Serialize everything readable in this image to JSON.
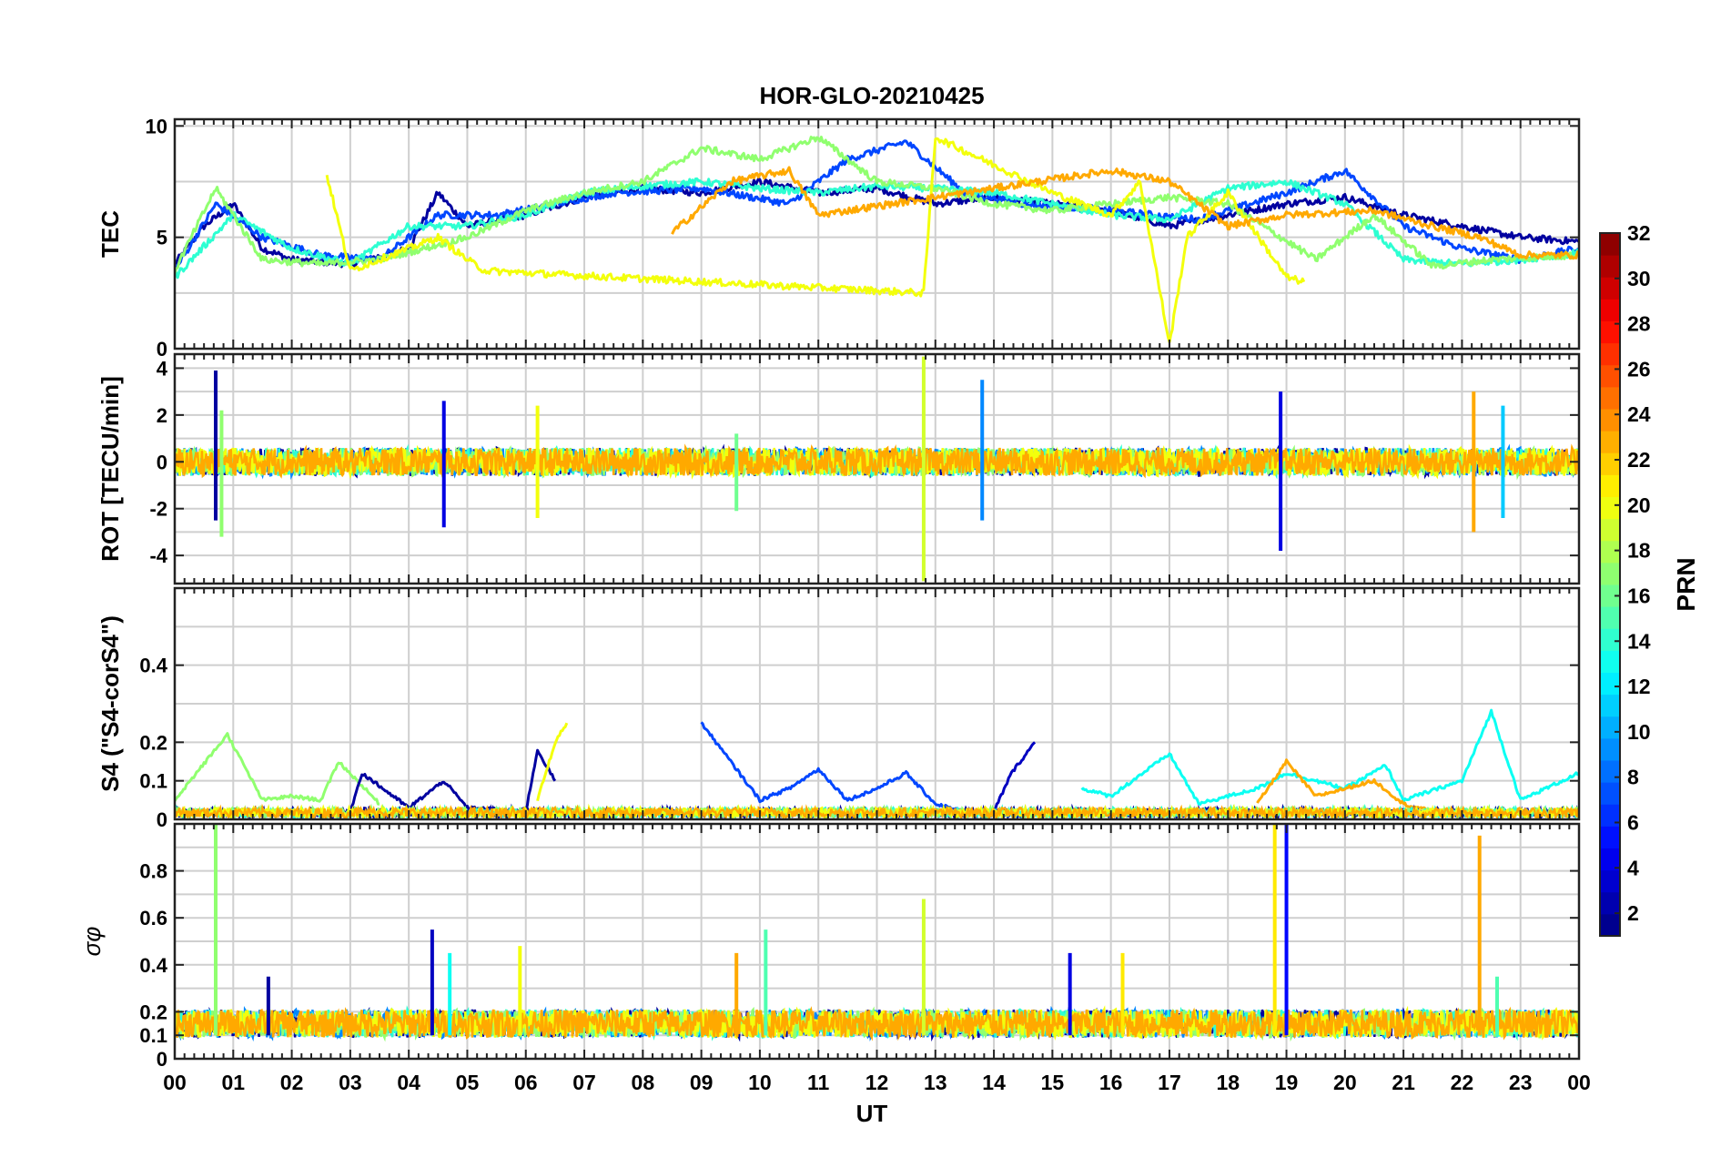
{
  "chart_data": {
    "type": "line",
    "title": "HOR-GLO-20210425",
    "xlabel": "UT",
    "x_tick_labels": [
      "00",
      "01",
      "02",
      "03",
      "04",
      "05",
      "06",
      "07",
      "08",
      "09",
      "10",
      "11",
      "12",
      "13",
      "14",
      "15",
      "16",
      "17",
      "18",
      "19",
      "20",
      "21",
      "22",
      "23",
      "00"
    ],
    "xlim": [
      0,
      24
    ],
    "panels": [
      {
        "id": "tec",
        "ylabel": "TEC",
        "ylim": [
          0,
          10.3
        ],
        "y_tick_labels": [
          "0",
          "5",
          "10"
        ],
        "y_ticks": [
          0,
          5,
          10
        ],
        "minor_grid": [
          2.5,
          7.5
        ],
        "series_summary": [
          {
            "prn": 2,
            "x": [
              0,
              0.5,
              1,
              1.5,
              2,
              3,
              4,
              4.5,
              5,
              6,
              7,
              8,
              9,
              10,
              11,
              12,
              13,
              14,
              15,
              16,
              17,
              18,
              19,
              20,
              21,
              22,
              23,
              24
            ],
            "y": [
              3.8,
              5.5,
              6.5,
              4.5,
              4,
              3.8,
              4.5,
              7,
              5.5,
              6,
              6.8,
              7.2,
              7,
              7.5,
              7,
              7.2,
              6.5,
              6.8,
              6.5,
              6.2,
              5.5,
              6,
              6.5,
              6.8,
              6,
              5.5,
              5,
              4.8
            ]
          },
          {
            "prn": 7,
            "x": [
              0,
              0.7,
              1.5,
              2.5,
              3.5,
              4.5,
              5.5,
              6.5,
              7.5,
              9,
              10.5,
              11.5,
              12.5,
              13.5,
              14.5,
              16,
              17.5,
              19,
              20,
              21,
              22,
              23,
              24
            ],
            "y": [
              3.5,
              6.5,
              5,
              4.2,
              4,
              6,
              6,
              6.5,
              7,
              7.2,
              6.5,
              8.5,
              9.3,
              7,
              6.5,
              6.2,
              5.8,
              7,
              8,
              5.5,
              4.5,
              4,
              4.5
            ]
          },
          {
            "prn": 14,
            "x": [
              0,
              1,
              2,
              3,
              4,
              5,
              6,
              7,
              8,
              9,
              10,
              11,
              12,
              13,
              14,
              16,
              17,
              18,
              19,
              20,
              21,
              22,
              23,
              24
            ],
            "y": [
              3.2,
              6,
              4.5,
              3.8,
              5.5,
              5.5,
              6,
              7,
              7.3,
              7.5,
              7.2,
              7,
              7.3,
              7.2,
              7,
              6,
              5.8,
              7.2,
              7.5,
              6.5,
              4,
              3.8,
              4,
              4.3
            ]
          },
          {
            "prn": 17,
            "x": [
              0,
              0.7,
              1.5,
              2.5,
              3.5,
              5,
              6,
              7,
              8,
              9,
              10,
              11,
              12,
              13,
              14,
              15,
              16,
              17,
              18,
              19.5,
              20.5,
              21.5,
              22.5,
              24
            ],
            "y": [
              3.5,
              7.2,
              4,
              3.8,
              4,
              5,
              6.2,
              7,
              7.5,
              9,
              8.5,
              9.5,
              7.5,
              7.2,
              6.5,
              6.2,
              6.5,
              6.8,
              6.5,
              4,
              6,
              3.7,
              4,
              4.2
            ]
          },
          {
            "prn": 20,
            "x": [
              2.6,
              3,
              4.5,
              5,
              5.3,
              12.8,
              13,
              15,
              16,
              16.5,
              17,
              17.3,
              18,
              19,
              19.3
            ],
            "y": [
              7.8,
              3.5,
              5,
              4,
              3.5,
              2.5,
              9.5,
              7,
              6,
              7.5,
              0.2,
              5,
              7,
              3.2,
              3
            ]
          },
          {
            "prn": 23,
            "x": [
              8.5,
              9.5,
              10.5,
              11,
              16,
              17,
              18,
              19,
              20.5,
              21.5,
              22.3,
              23,
              24
            ],
            "y": [
              5.2,
              7.5,
              8,
              6,
              8,
              7.5,
              5.5,
              6,
              6.2,
              5.5,
              5,
              4.2,
              4.2
            ]
          }
        ]
      },
      {
        "id": "rot",
        "ylabel": "ROT [TECU/min]",
        "ylim": [
          -5.2,
          4.6
        ],
        "y_tick_labels": [
          "-4",
          "-2",
          "0",
          "2",
          "4"
        ],
        "y_ticks": [
          -4,
          -2,
          0,
          2,
          4
        ],
        "minor_grid": [
          -3,
          -1,
          1,
          3
        ],
        "spikes": [
          {
            "x": 0.7,
            "min": -2.5,
            "max": 3.9,
            "prn": 2
          },
          {
            "x": 0.8,
            "min": -3.2,
            "max": 2.2,
            "prn": 17
          },
          {
            "x": 4.6,
            "min": -2.8,
            "max": 2.6,
            "prn": 4
          },
          {
            "x": 6.2,
            "min": -2.4,
            "max": 2.4,
            "prn": 20
          },
          {
            "x": 9.6,
            "min": -2.1,
            "max": 1.2,
            "prn": 16
          },
          {
            "x": 12.8,
            "min": -5.1,
            "max": 4.5,
            "prn": 19
          },
          {
            "x": 13.8,
            "min": -2.5,
            "max": 3.5,
            "prn": 9
          },
          {
            "x": 18.9,
            "min": -3.8,
            "max": 3.0,
            "prn": 4
          },
          {
            "x": 22.2,
            "min": -3.0,
            "max": 3.0,
            "prn": 23
          },
          {
            "x": 22.7,
            "min": -2.4,
            "max": 2.4,
            "prn": 11
          }
        ]
      },
      {
        "id": "s4",
        "ylabel": "S4 (\"S4-corS4\")",
        "ylim": [
          0,
          0.6
        ],
        "y_tick_labels": [
          "0",
          "0.1",
          "0.2",
          "0.4"
        ],
        "y_ticks": [
          0,
          0.1,
          0.2,
          0.4
        ],
        "minor_grid": [
          0.3,
          0.5
        ],
        "series_summary": [
          {
            "prn": 17,
            "x": [
              0,
              0.9,
              1.5,
              2,
              2.5,
              2.8,
              3.5
            ],
            "y": [
              0.05,
              0.22,
              0.05,
              0.06,
              0.05,
              0.15,
              0.04
            ]
          },
          {
            "prn": 2,
            "x": [
              3,
              3.2,
              4,
              4.6,
              5,
              6,
              6.2,
              6.5
            ],
            "y": [
              0.02,
              0.12,
              0.03,
              0.1,
              0.03,
              0.02,
              0.18,
              0.1
            ]
          },
          {
            "prn": 20,
            "x": [
              6.2,
              6.5,
              6.7
            ],
            "y": [
              0.05,
              0.2,
              0.25
            ]
          },
          {
            "prn": 7,
            "x": [
              9,
              9.5,
              10,
              10.5,
              11,
              11.5,
              12,
              12.5,
              13,
              13.5
            ],
            "y": [
              0.25,
              0.15,
              0.05,
              0.08,
              0.13,
              0.05,
              0.08,
              0.12,
              0.04,
              0.02
            ]
          },
          {
            "prn": 3,
            "x": [
              14,
              14.3,
              14.7
            ],
            "y": [
              0.02,
              0.12,
              0.2
            ]
          },
          {
            "prn": 13,
            "x": [
              15.5,
              16,
              17,
              17.5,
              18.5,
              19,
              20,
              20.7,
              21,
              22,
              22.5,
              23,
              24
            ],
            "y": [
              0.08,
              0.06,
              0.17,
              0.04,
              0.08,
              0.12,
              0.08,
              0.14,
              0.05,
              0.1,
              0.28,
              0.05,
              0.12
            ]
          },
          {
            "prn": 23,
            "x": [
              18.5,
              19,
              19.5,
              20.5,
              21,
              21.5,
              22
            ],
            "y": [
              0.04,
              0.15,
              0.06,
              0.1,
              0.04,
              0.02,
              0.01
            ]
          }
        ]
      },
      {
        "id": "sigma",
        "ylabel": "σφ",
        "ylim": [
          0,
          1.0
        ],
        "y_tick_labels": [
          "0",
          "0.1",
          "0.2",
          "0.4",
          "0.6",
          "0.8"
        ],
        "y_ticks": [
          0,
          0.1,
          0.2,
          0.4,
          0.6,
          0.8
        ],
        "minor_grid": [
          0.3,
          0.5,
          0.7,
          0.9
        ],
        "spikes": [
          {
            "x": 0.7,
            "min": 0.1,
            "max": 1.0,
            "prn": 17
          },
          {
            "x": 1.6,
            "min": 0.1,
            "max": 0.35,
            "prn": 2
          },
          {
            "x": 4.4,
            "min": 0.1,
            "max": 0.55,
            "prn": 3
          },
          {
            "x": 4.7,
            "min": 0.1,
            "max": 0.45,
            "prn": 13
          },
          {
            "x": 5.9,
            "min": 0.1,
            "max": 0.48,
            "prn": 20
          },
          {
            "x": 9.6,
            "min": 0.1,
            "max": 0.45,
            "prn": 23
          },
          {
            "x": 10.1,
            "min": 0.1,
            "max": 0.55,
            "prn": 15
          },
          {
            "x": 12.8,
            "min": 0.1,
            "max": 0.68,
            "prn": 19
          },
          {
            "x": 15.3,
            "min": 0.1,
            "max": 0.45,
            "prn": 4
          },
          {
            "x": 16.2,
            "min": 0.1,
            "max": 0.45,
            "prn": 21
          },
          {
            "x": 18.8,
            "min": 0.1,
            "max": 1.0,
            "prn": 21
          },
          {
            "x": 19.0,
            "min": 0.1,
            "max": 1.0,
            "prn": 5
          },
          {
            "x": 22.3,
            "min": 0.1,
            "max": 0.95,
            "prn": 23
          },
          {
            "x": 22.6,
            "min": 0.1,
            "max": 0.35,
            "prn": 15
          }
        ]
      }
    ],
    "colorbar": {
      "label": "PRN",
      "range": [
        1,
        32
      ],
      "tick_labels": [
        "2",
        "4",
        "6",
        "8",
        "10",
        "12",
        "14",
        "16",
        "18",
        "20",
        "22",
        "24",
        "26",
        "28",
        "30",
        "32"
      ],
      "ticks": [
        2,
        4,
        6,
        8,
        10,
        12,
        14,
        16,
        18,
        20,
        22,
        24,
        26,
        28,
        30,
        32
      ],
      "colormap": "jet"
    },
    "grid": true
  }
}
